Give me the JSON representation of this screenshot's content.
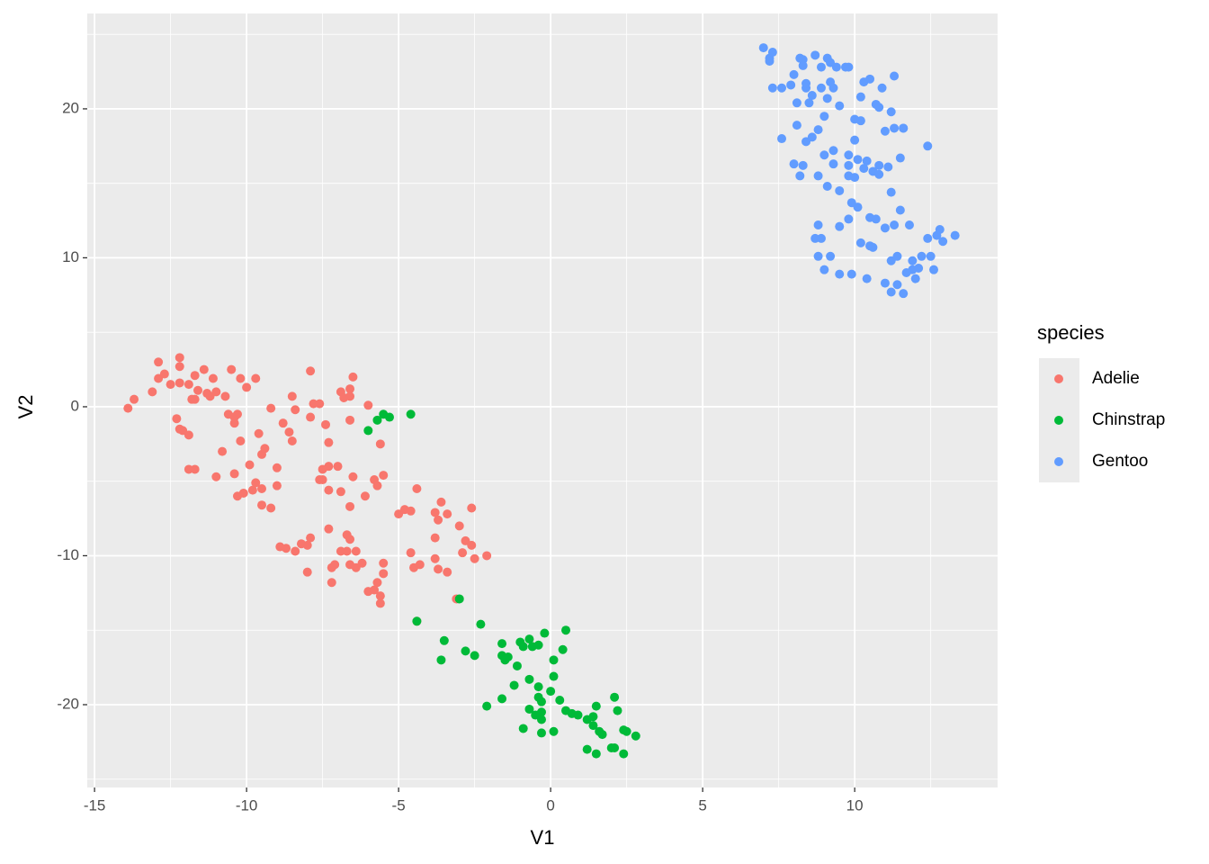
{
  "chart_data": {
    "type": "scatter",
    "x_label": "V1",
    "y_label": "V2",
    "legend_title": "species",
    "legend_position": "right",
    "grid": true,
    "xlim": [
      -15.24,
      14.7
    ],
    "ylim": [
      -25.56,
      26.4
    ],
    "xticks": [
      -15,
      -10,
      -5,
      0,
      5,
      10
    ],
    "yticks": [
      -20,
      -10,
      0,
      10,
      20
    ],
    "series": [
      {
        "name": "Adelie",
        "color": "#F8766D",
        "x": [
          -13.9,
          -13.7,
          -13.1,
          -12.9,
          -12.9,
          -12.7,
          -12.5,
          -12.2,
          -12.2,
          -12.2,
          -12.3,
          -12.2,
          -12.1,
          -11.9,
          -11.9,
          -11.7,
          -11.8,
          -11.6,
          -11.4,
          -11.3,
          -11.2,
          -11.1,
          -11.0,
          -11.7,
          -11.9,
          -11.7,
          -11.0,
          -10.8,
          -10.7,
          -10.5,
          -10.6,
          -10.4,
          -10.4,
          -10.2,
          -10.3,
          -10.2,
          -10.4,
          -10.3,
          -10.1,
          -10.0,
          -9.9,
          -9.8,
          -9.7,
          -9.6,
          -9.7,
          -9.5,
          -9.5,
          -9.4,
          -9.5,
          -9.2,
          -9.2,
          -9.0,
          -9.0,
          -8.9,
          -8.7,
          -8.8,
          -8.6,
          -8.5,
          -8.5,
          -8.4,
          -8.4,
          -8.2,
          -8.0,
          -7.9,
          -7.9,
          -7.9,
          -8.0,
          -7.8,
          -7.6,
          -7.6,
          -7.5,
          -7.5,
          -7.4,
          -7.3,
          -7.3,
          -7.3,
          -7.3,
          -7.2,
          -7.2,
          -7.0,
          -6.9,
          -6.9,
          -6.9,
          -6.8,
          -6.7,
          -6.6,
          -6.6,
          -6.7,
          -6.6,
          -6.6,
          -6.5,
          -6.5,
          -6.6,
          -6.6,
          -6.4,
          -6.4,
          -6.2,
          -6.1,
          -6.0,
          -6.0,
          -5.8,
          -5.8,
          -5.7,
          -5.7,
          -5.6,
          -5.6,
          -5.6,
          -5.5,
          -5.5,
          -5.5,
          -5.0,
          -4.8,
          -4.6,
          -4.6,
          -4.5,
          -4.4,
          -4.3,
          -3.8,
          -3.8,
          -3.7,
          -3.8,
          -3.7,
          -3.6,
          -3.4,
          -3.4,
          -3.0,
          -2.9,
          -2.8,
          -2.6,
          -2.6,
          -2.5,
          -2.1,
          -3.1,
          -4.4,
          -7.1
        ],
        "y": [
          -0.1,
          0.5,
          1.0,
          3.0,
          1.9,
          2.2,
          1.5,
          3.3,
          2.7,
          1.6,
          -0.8,
          -1.5,
          -1.6,
          -1.9,
          1.5,
          2.1,
          0.5,
          1.1,
          2.5,
          0.9,
          0.7,
          1.9,
          1.0,
          0.5,
          -4.2,
          -4.2,
          -4.7,
          -3.0,
          0.7,
          2.5,
          -0.5,
          -1.1,
          -0.7,
          1.9,
          -0.5,
          -2.3,
          -4.5,
          -6.0,
          -5.8,
          1.3,
          -3.9,
          -5.6,
          1.9,
          -1.8,
          -5.1,
          -5.5,
          -3.2,
          -2.8,
          -6.6,
          -6.8,
          -0.1,
          -5.3,
          -4.1,
          -9.4,
          -9.5,
          -1.1,
          -1.7,
          -2.3,
          0.7,
          -9.7,
          -0.2,
          -9.2,
          -9.3,
          2.4,
          -0.7,
          -8.8,
          -11.1,
          0.2,
          0.2,
          -4.9,
          -4.2,
          -4.9,
          -1.2,
          -4.0,
          -2.4,
          -8.2,
          -5.6,
          -11.8,
          -10.8,
          -4.0,
          -5.7,
          -9.7,
          1.0,
          0.6,
          -8.6,
          -0.9,
          0.7,
          -9.7,
          -10.6,
          -6.7,
          -4.7,
          2.0,
          -8.9,
          1.2,
          -9.7,
          -10.8,
          -10.5,
          -6.0,
          -12.4,
          0.1,
          -4.9,
          -12.3,
          -5.3,
          -11.8,
          -12.7,
          -13.2,
          -2.5,
          -4.6,
          -10.5,
          -11.2,
          -7.2,
          -6.9,
          -7.0,
          -9.8,
          -10.8,
          -5.5,
          -10.6,
          -8.8,
          -7.1,
          -7.6,
          -10.2,
          -10.9,
          -6.4,
          -7.2,
          -11.1,
          -8.0,
          -9.8,
          -9.0,
          -6.8,
          -9.3,
          -10.2,
          -10.0,
          -12.9,
          -14.4,
          -10.6
        ]
      },
      {
        "name": "Chinstrap",
        "color": "#00BA38",
        "x": [
          -6.0,
          -5.7,
          -5.5,
          -5.3,
          -4.6,
          -4.4,
          -3.5,
          -3.6,
          -3.0,
          -2.8,
          -2.5,
          -2.3,
          -2.1,
          -1.6,
          -1.6,
          -1.6,
          -1.5,
          -1.4,
          -1.2,
          -1.1,
          -1.0,
          -0.9,
          -0.9,
          -0.7,
          -0.7,
          -0.7,
          -0.6,
          -0.5,
          -0.4,
          -0.4,
          -0.4,
          -0.3,
          -0.3,
          -0.3,
          -0.3,
          -0.2,
          0.0,
          0.1,
          0.1,
          0.1,
          0.3,
          0.4,
          0.5,
          0.5,
          0.7,
          0.9,
          1.2,
          1.2,
          1.4,
          1.4,
          1.5,
          1.5,
          1.6,
          1.7,
          2.0,
          2.1,
          2.1,
          2.2,
          2.4,
          2.4,
          2.5,
          2.8
        ],
        "y": [
          -1.6,
          -0.9,
          -0.5,
          -0.7,
          -0.5,
          -14.4,
          -15.7,
          -17.0,
          -12.9,
          -16.4,
          -16.7,
          -14.6,
          -20.1,
          -15.9,
          -19.6,
          -16.7,
          -17.0,
          -16.8,
          -18.7,
          -17.4,
          -15.8,
          -16.1,
          -21.6,
          -15.6,
          -18.3,
          -20.3,
          -16.1,
          -20.7,
          -16.0,
          -19.5,
          -18.8,
          -20.5,
          -19.8,
          -21.0,
          -21.9,
          -15.2,
          -19.1,
          -18.1,
          -21.8,
          -17.0,
          -19.7,
          -16.3,
          -20.4,
          -15.0,
          -20.6,
          -20.7,
          -21.0,
          -23.0,
          -21.4,
          -20.8,
          -23.3,
          -20.1,
          -21.8,
          -22.0,
          -22.9,
          -22.9,
          -19.5,
          -20.4,
          -21.7,
          -23.3,
          -21.8,
          -22.1
        ]
      },
      {
        "name": "Gentoo",
        "color": "#619CFF",
        "x": [
          7.0,
          7.2,
          7.2,
          7.3,
          7.3,
          7.6,
          7.6,
          7.9,
          8.0,
          8.0,
          8.1,
          8.1,
          8.2,
          8.2,
          8.3,
          8.3,
          8.3,
          8.4,
          8.4,
          8.4,
          8.5,
          8.6,
          8.6,
          8.7,
          8.7,
          8.8,
          8.8,
          8.8,
          8.8,
          8.9,
          8.9,
          8.9,
          9.0,
          9.0,
          9.0,
          9.1,
          9.1,
          9.1,
          9.2,
          9.2,
          9.3,
          9.2,
          9.3,
          9.3,
          9.4,
          9.5,
          9.5,
          9.5,
          9.5,
          9.7,
          9.8,
          9.8,
          9.8,
          9.8,
          9.8,
          9.9,
          9.9,
          10.0,
          10.0,
          10.0,
          10.1,
          10.1,
          10.2,
          10.2,
          10.2,
          10.3,
          10.3,
          10.4,
          10.4,
          10.5,
          10.5,
          10.5,
          10.6,
          10.6,
          10.7,
          10.7,
          10.8,
          10.8,
          10.8,
          10.9,
          11.0,
          11.0,
          11.0,
          11.1,
          11.2,
          11.2,
          11.2,
          11.2,
          11.3,
          11.3,
          11.3,
          11.4,
          11.4,
          11.5,
          11.5,
          11.6,
          11.6,
          11.6,
          11.7,
          11.8,
          11.9,
          11.9,
          12.0,
          12.1,
          12.2,
          12.4,
          12.4,
          12.5,
          12.6,
          12.7,
          12.8,
          12.9,
          13.3
        ],
        "y": [
          24.1,
          23.4,
          23.2,
          23.8,
          21.4,
          18.0,
          21.4,
          21.6,
          16.3,
          22.3,
          20.4,
          18.9,
          23.4,
          15.5,
          16.2,
          23.3,
          22.9,
          21.4,
          21.7,
          17.8,
          20.4,
          20.9,
          18.1,
          23.6,
          11.3,
          18.6,
          15.5,
          12.2,
          10.1,
          11.3,
          22.8,
          21.4,
          9.2,
          19.5,
          16.9,
          14.8,
          23.4,
          20.7,
          23.1,
          10.1,
          17.2,
          21.8,
          16.3,
          21.4,
          22.8,
          8.9,
          14.5,
          20.2,
          12.1,
          22.8,
          12.6,
          22.8,
          15.5,
          16.9,
          16.2,
          8.9,
          13.7,
          17.9,
          15.4,
          19.3,
          13.4,
          16.6,
          11.0,
          19.2,
          20.8,
          21.8,
          16.0,
          16.5,
          8.6,
          22.0,
          10.8,
          12.7,
          15.8,
          10.7,
          20.3,
          12.6,
          15.6,
          20.1,
          16.2,
          21.4,
          18.5,
          12.0,
          8.3,
          16.1,
          14.4,
          19.8,
          7.7,
          9.8,
          22.2,
          18.7,
          12.2,
          8.2,
          10.1,
          16.7,
          13.2,
          18.7,
          7.6,
          18.7,
          9.0,
          12.2,
          9.8,
          9.2,
          8.6,
          9.3,
          10.1,
          17.5,
          11.3,
          10.1,
          9.2,
          11.5,
          11.9,
          11.1,
          11.5
        ]
      }
    ]
  }
}
